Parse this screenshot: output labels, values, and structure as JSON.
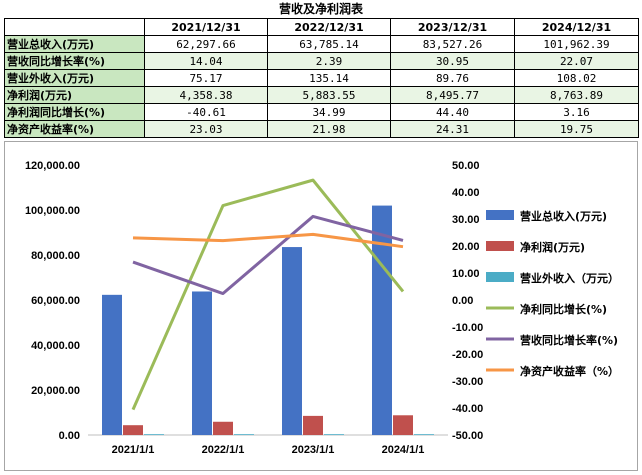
{
  "title": "营收及净利润表",
  "table": {
    "columns": [
      "2021/12/31",
      "2022/12/31",
      "2023/12/31",
      "2024/12/31"
    ],
    "rows": [
      {
        "label": "营业总收入(万元)",
        "values": [
          "62,297.66",
          "63,785.14",
          "83,527.26",
          "101,962.39"
        ]
      },
      {
        "label": "营收同比增长率(%)",
        "values": [
          "14.04",
          "2.39",
          "30.95",
          "22.07"
        ]
      },
      {
        "label": "营业外收入(万元)",
        "values": [
          "75.17",
          "135.14",
          "89.76",
          "108.02"
        ]
      },
      {
        "label": "净利润(万元)",
        "values": [
          "4,358.38",
          "5,883.55",
          "8,495.77",
          "8,763.89"
        ]
      },
      {
        "label": "净利润同比增长(%)",
        "values": [
          "-40.61",
          "34.99",
          "44.40",
          "3.16"
        ]
      },
      {
        "label": "净资产收益率(%)",
        "values": [
          "23.03",
          "21.98",
          "24.31",
          "19.75"
        ]
      }
    ]
  },
  "chart_data": {
    "type": "bar",
    "categories": [
      "2021/1/1",
      "2022/1/1",
      "2023/1/1",
      "2024/1/1"
    ],
    "y_left": {
      "min": 0,
      "max": 120000,
      "step": 20000,
      "ticks": [
        "0.00",
        "20,000.00",
        "40,000.00",
        "60,000.00",
        "80,000.00",
        "100,000.00",
        "120,000.00"
      ]
    },
    "y_right": {
      "min": -50,
      "max": 50,
      "step": 10,
      "ticks": [
        "-50.00",
        "-40.00",
        "-30.00",
        "-20.00",
        "-10.00",
        "0.00",
        "10.00",
        "20.00",
        "30.00",
        "40.00",
        "50.00"
      ]
    },
    "bar_series": [
      {
        "name": "营业总收入(万元)",
        "color": "#4472c4",
        "values": [
          62297.66,
          63785.14,
          83527.26,
          101962.39
        ]
      },
      {
        "name": "净利润(万元)",
        "color": "#c0504d",
        "values": [
          4358.38,
          5883.55,
          8495.77,
          8763.89
        ]
      },
      {
        "name": "营业外收入（万元）",
        "color": "#4bacc6",
        "values": [
          75.17,
          135.14,
          89.76,
          108.02
        ]
      }
    ],
    "line_series": [
      {
        "name": "净利同比增长(%)",
        "color": "#9bbb59",
        "values": [
          -40.61,
          34.99,
          44.4,
          3.16
        ]
      },
      {
        "name": "营收同比增长率(%)",
        "color": "#8064a2",
        "values": [
          14.04,
          2.39,
          30.95,
          22.07
        ]
      },
      {
        "name": "净资产收益率（%）",
        "color": "#f79646",
        "values": [
          23.03,
          21.98,
          24.31,
          19.75
        ]
      }
    ],
    "legend_position": "right",
    "grid": false
  }
}
